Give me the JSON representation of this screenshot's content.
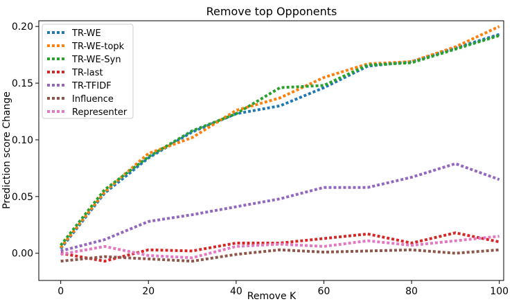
{
  "chart_data": {
    "type": "line",
    "title": "Remove top Opponents",
    "xlabel": "Remove K",
    "ylabel": "Prediction score Change",
    "xlim": [
      -5,
      101
    ],
    "ylim": [
      -0.024,
      0.205
    ],
    "xticks": [
      0,
      20,
      40,
      60,
      80,
      100
    ],
    "yticks": [
      0.0,
      0.05,
      0.1,
      0.15,
      0.2
    ],
    "xtick_labels": [
      "0",
      "20",
      "40",
      "60",
      "80",
      "100"
    ],
    "ytick_labels": [
      "0.00",
      "0.05",
      "0.10",
      "0.15",
      "0.20"
    ],
    "legend_position": "top-left",
    "line_style": "dotted",
    "grid": false,
    "x": [
      0,
      10,
      20,
      30,
      40,
      50,
      60,
      70,
      80,
      90,
      100
    ],
    "series": [
      {
        "name": "TR-WE",
        "color": "#1f77b4",
        "values": [
          0.004,
          0.053,
          0.084,
          0.107,
          0.123,
          0.13,
          0.146,
          0.165,
          0.169,
          0.181,
          0.193
        ]
      },
      {
        "name": "TR-WE-topk",
        "color": "#ff7f0e",
        "values": [
          0.005,
          0.054,
          0.088,
          0.102,
          0.126,
          0.137,
          0.155,
          0.167,
          0.169,
          0.182,
          0.2
        ]
      },
      {
        "name": "TR-WE-Syn",
        "color": "#2ca02c",
        "values": [
          0.007,
          0.056,
          0.085,
          0.108,
          0.123,
          0.146,
          0.148,
          0.166,
          0.168,
          0.18,
          0.192
        ]
      },
      {
        "name": "TR-last",
        "color": "#d62728",
        "values": [
          0.0,
          -0.007,
          0.003,
          0.002,
          0.009,
          0.009,
          0.013,
          0.017,
          0.009,
          0.018,
          0.01
        ]
      },
      {
        "name": "TR-TFIDF",
        "color": "#9467bd",
        "values": [
          0.002,
          0.012,
          0.028,
          0.034,
          0.041,
          0.048,
          0.058,
          0.058,
          0.067,
          0.079,
          0.065
        ]
      },
      {
        "name": "Influence",
        "color": "#8c564b",
        "values": [
          -0.007,
          -0.003,
          -0.005,
          -0.007,
          -0.001,
          0.003,
          0.001,
          0.002,
          0.003,
          0.0,
          0.003
        ]
      },
      {
        "name": "Representer",
        "color": "#e377c2",
        "values": [
          -0.001,
          0.006,
          -0.002,
          -0.004,
          0.006,
          0.008,
          0.006,
          0.011,
          0.007,
          0.011,
          0.015
        ]
      }
    ]
  }
}
